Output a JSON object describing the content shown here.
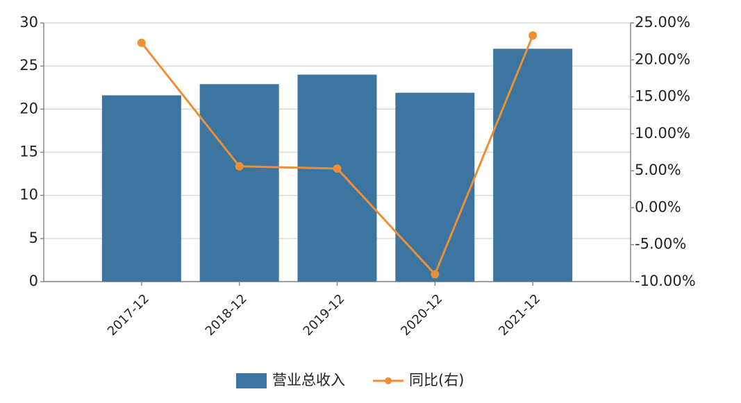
{
  "chart_data": {
    "type": "bar-line",
    "categories": [
      "2017-12",
      "2018-12",
      "2019-12",
      "2020-12",
      "2021-12"
    ],
    "series": [
      {
        "name": "营业总收入",
        "type": "bar",
        "color": "#3c76a0",
        "axis": "y",
        "values": [
          21.6,
          22.9,
          24.0,
          21.9,
          27.0
        ]
      },
      {
        "name": "同比(右)",
        "type": "line",
        "color": "#ec8f35",
        "axis": "y2",
        "values": [
          22.3,
          5.6,
          5.3,
          -9.0,
          23.3
        ]
      }
    ],
    "ylim": [
      0,
      30
    ],
    "yticks": [
      0,
      5,
      10,
      15,
      20,
      25,
      30
    ],
    "y2lim": [
      -10,
      25
    ],
    "y2ticks": [
      {
        "value": -10,
        "label": "-10.00%"
      },
      {
        "value": -5,
        "label": "-5.00%"
      },
      {
        "value": 0,
        "label": "0.00%"
      },
      {
        "value": 5,
        "label": "5.00%"
      },
      {
        "value": 10,
        "label": "10.00%"
      },
      {
        "value": 15,
        "label": "15.00%"
      },
      {
        "value": 20,
        "label": "20.00%"
      },
      {
        "value": 25,
        "label": "25.00%"
      }
    ],
    "grid": true,
    "legend": "bottom"
  }
}
